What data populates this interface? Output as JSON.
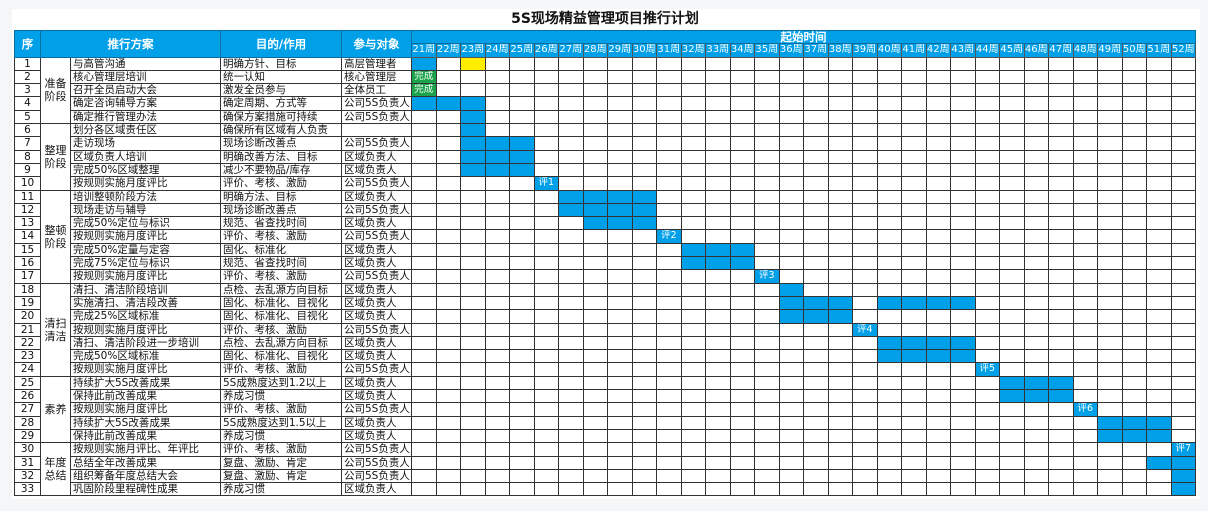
{
  "title": "5S现场精益管理项目推行计划",
  "headers": {
    "seq": "序",
    "plan": "推行方案",
    "purpose": "目的/作用",
    "participants": "参与对象",
    "timeline": "起始时间"
  },
  "weeks": [
    "21周",
    "22周",
    "23周",
    "24周",
    "25周",
    "26周",
    "27周",
    "28周",
    "29周",
    "30周",
    "31周",
    "32周",
    "33周",
    "34周",
    "35周",
    "36周",
    "37周",
    "38周",
    "39周",
    "40周",
    "41周",
    "42周",
    "43周",
    "44周",
    "45周",
    "46周",
    "47周",
    "48周",
    "49周",
    "50周",
    "51周",
    "52周"
  ],
  "colors": {
    "header": "#00a0e9",
    "bar": "#00a0e9",
    "done": "#1aa34a",
    "highlight": "#ffee00"
  },
  "phases": [
    {
      "name": "准备阶段",
      "start": 1,
      "count": 5
    },
    {
      "name": "整理阶段",
      "start": 6,
      "count": 5
    },
    {
      "name": "整顿阶段",
      "start": 11,
      "count": 7
    },
    {
      "name": "清扫清洁",
      "start": 18,
      "count": 7
    },
    {
      "name": "素养",
      "start": 25,
      "count": 5
    },
    {
      "name": "年度总结",
      "start": 30,
      "count": 4
    }
  ],
  "rows": [
    {
      "n": "1",
      "plan": "与高管沟通",
      "purpose": "明确方针、目标",
      "who": "高层管理者",
      "bars": [
        [
          21,
          "blue"
        ],
        [
          23,
          "yellow"
        ]
      ]
    },
    {
      "n": "2",
      "plan": "核心管理层培训",
      "purpose": "统一认知",
      "who": "核心管理层",
      "bars": [
        [
          21,
          "green",
          "完成"
        ]
      ]
    },
    {
      "n": "3",
      "plan": "召开全员启动大会",
      "purpose": "激发全员参与",
      "who": "全体员工",
      "bars": [
        [
          21,
          "green",
          "完成"
        ]
      ]
    },
    {
      "n": "4",
      "plan": "确定咨询辅导方案",
      "purpose": "确定周期、方式等",
      "who": "公司5S负责人",
      "bars": [
        [
          21,
          "blue"
        ],
        [
          22,
          "blue"
        ],
        [
          23,
          "blue"
        ]
      ]
    },
    {
      "n": "5",
      "plan": "确定推行管理办法",
      "purpose": "确保方案措施可持续",
      "who": "公司5S负责人",
      "bars": [
        [
          23,
          "blue"
        ]
      ]
    },
    {
      "n": "6",
      "plan": "划分各区域责任区",
      "purpose": "确保所有区域有人负责",
      "who": "",
      "bars": [
        [
          23,
          "blue"
        ]
      ]
    },
    {
      "n": "7",
      "plan": "走访现场",
      "purpose": "现场诊断改善点",
      "who": "公司5S负责人",
      "bars": [
        [
          23,
          "blue"
        ],
        [
          24,
          "blue"
        ],
        [
          25,
          "blue"
        ]
      ]
    },
    {
      "n": "8",
      "plan": "区域负责人培训",
      "purpose": "明确改善方法、目标",
      "who": "区域负责人",
      "bars": [
        [
          23,
          "blue"
        ],
        [
          24,
          "blue"
        ],
        [
          25,
          "blue"
        ]
      ]
    },
    {
      "n": "9",
      "plan": "完成50%区域整理",
      "purpose": "减少不要物品/库存",
      "who": "区域负责人",
      "bars": [
        [
          23,
          "blue"
        ],
        [
          24,
          "blue"
        ],
        [
          25,
          "blue"
        ]
      ]
    },
    {
      "n": "10",
      "plan": "按规则实施月度评比",
      "purpose": "评价、考核、激励",
      "who": "公司5S负责人",
      "bars": [
        [
          26,
          "blue",
          "评1"
        ]
      ]
    },
    {
      "n": "11",
      "plan": "培训整顿阶段方法",
      "purpose": "明确方法、目标",
      "who": "区域负责人",
      "bars": [
        [
          27,
          "blue"
        ],
        [
          28,
          "blue"
        ],
        [
          29,
          "blue"
        ],
        [
          30,
          "blue"
        ]
      ]
    },
    {
      "n": "12",
      "plan": "现场走访与辅导",
      "purpose": "现场诊断改善点",
      "who": "公司5S负责人",
      "bars": [
        [
          27,
          "blue"
        ],
        [
          28,
          "blue"
        ],
        [
          29,
          "blue"
        ],
        [
          30,
          "blue"
        ]
      ]
    },
    {
      "n": "13",
      "plan": "完成50%定位与标识",
      "purpose": "规范、省查找时间",
      "who": "区域负责人",
      "bars": [
        [
          28,
          "blue"
        ],
        [
          29,
          "blue"
        ],
        [
          30,
          "blue"
        ]
      ]
    },
    {
      "n": "14",
      "plan": "按规则实施月度评比",
      "purpose": "评价、考核、激励",
      "who": "公司5S负责人",
      "bars": [
        [
          31,
          "blue",
          "评2"
        ]
      ]
    },
    {
      "n": "15",
      "plan": "完成50%定量与定容",
      "purpose": "固化、标准化",
      "who": "区域负责人",
      "bars": [
        [
          32,
          "blue"
        ],
        [
          33,
          "blue"
        ],
        [
          34,
          "blue"
        ]
      ]
    },
    {
      "n": "16",
      "plan": "完成75%定位与标识",
      "purpose": "规范、省查找时间",
      "who": "区域负责人",
      "bars": [
        [
          32,
          "blue"
        ],
        [
          33,
          "blue"
        ],
        [
          34,
          "blue"
        ]
      ]
    },
    {
      "n": "17",
      "plan": "按规则实施月度评比",
      "purpose": "评价、考核、激励",
      "who": "公司5S负责人",
      "bars": [
        [
          35,
          "blue",
          "评3"
        ]
      ]
    },
    {
      "n": "18",
      "plan": "清扫、清洁阶段培训",
      "purpose": "点检、去乱源方向目标",
      "who": "区域负责人",
      "bars": [
        [
          36,
          "blue"
        ]
      ]
    },
    {
      "n": "19",
      "plan": "实施清扫、清洁段改善",
      "purpose": "固化、标准化、目视化",
      "who": "区域负责人",
      "bars": [
        [
          36,
          "blue"
        ],
        [
          37,
          "blue"
        ],
        [
          38,
          "blue"
        ],
        [
          40,
          "blue"
        ],
        [
          41,
          "blue"
        ],
        [
          42,
          "blue"
        ],
        [
          43,
          "blue"
        ]
      ]
    },
    {
      "n": "20",
      "plan": "完成25%区域标准",
      "purpose": "固化、标准化、目视化",
      "who": "区域负责人",
      "bars": [
        [
          36,
          "blue"
        ],
        [
          37,
          "blue"
        ],
        [
          38,
          "blue"
        ]
      ]
    },
    {
      "n": "21",
      "plan": "按规则实施月度评比",
      "purpose": "评价、考核、激励",
      "who": "公司5S负责人",
      "bars": [
        [
          39,
          "blue",
          "评4"
        ]
      ]
    },
    {
      "n": "22",
      "plan": "清扫、清洁阶段进一步培训",
      "purpose": "点检、去乱源方向目标",
      "who": "区域负责人",
      "bars": [
        [
          40,
          "blue"
        ],
        [
          41,
          "blue"
        ],
        [
          42,
          "blue"
        ],
        [
          43,
          "blue"
        ]
      ]
    },
    {
      "n": "23",
      "plan": "完成50%区域标准",
      "purpose": "固化、标准化、目视化",
      "who": "区域负责人",
      "bars": [
        [
          40,
          "blue"
        ],
        [
          41,
          "blue"
        ],
        [
          42,
          "blue"
        ],
        [
          43,
          "blue"
        ]
      ]
    },
    {
      "n": "24",
      "plan": "按规则实施月度评比",
      "purpose": "评价、考核、激励",
      "who": "公司5S负责人",
      "bars": [
        [
          44,
          "blue",
          "评5"
        ]
      ]
    },
    {
      "n": "25",
      "plan": "持续扩大5S改善成果",
      "purpose": "5S成熟度达到1.2以上",
      "who": "区域负责人",
      "bars": [
        [
          45,
          "blue"
        ],
        [
          46,
          "blue"
        ],
        [
          47,
          "blue"
        ]
      ]
    },
    {
      "n": "26",
      "plan": "保持此前改善成果",
      "purpose": "养成习惯",
      "who": "区域负责人",
      "bars": [
        [
          45,
          "blue"
        ],
        [
          46,
          "blue"
        ],
        [
          47,
          "blue"
        ]
      ]
    },
    {
      "n": "27",
      "plan": "按规则实施月度评比",
      "purpose": "评价、考核、激励",
      "who": "公司5S负责人",
      "bars": [
        [
          48,
          "blue",
          "评6"
        ]
      ]
    },
    {
      "n": "28",
      "plan": "持续扩大5S改善成果",
      "purpose": "5S成熟度达到1.5以上",
      "who": "区域负责人",
      "bars": [
        [
          49,
          "blue"
        ],
        [
          50,
          "blue"
        ],
        [
          51,
          "blue"
        ]
      ]
    },
    {
      "n": "29",
      "plan": "保持此前改善成果",
      "purpose": "养成习惯",
      "who": "区域负责人",
      "bars": [
        [
          49,
          "blue"
        ],
        [
          50,
          "blue"
        ],
        [
          51,
          "blue"
        ]
      ]
    },
    {
      "n": "30",
      "plan": "按规则实施月评比、年评比",
      "purpose": "评价、考核、激励",
      "who": "公司5S负责人",
      "bars": [
        [
          52,
          "blue",
          "评7"
        ]
      ]
    },
    {
      "n": "31",
      "plan": "总结全年改善成果",
      "purpose": "复盘、激励、肯定",
      "who": "公司5S负责人",
      "bars": [
        [
          51,
          "blue"
        ],
        [
          52,
          "blue"
        ]
      ]
    },
    {
      "n": "32",
      "plan": "组织筹备年度总结大会",
      "purpose": "复盘、激励、肯定",
      "who": "公司5S负责人",
      "bars": [
        [
          52,
          "blue"
        ]
      ]
    },
    {
      "n": "33",
      "plan": "巩固阶段里程碑性成果",
      "purpose": "养成习惯",
      "who": "区域负责人",
      "bars": [
        [
          52,
          "blue"
        ]
      ]
    }
  ]
}
